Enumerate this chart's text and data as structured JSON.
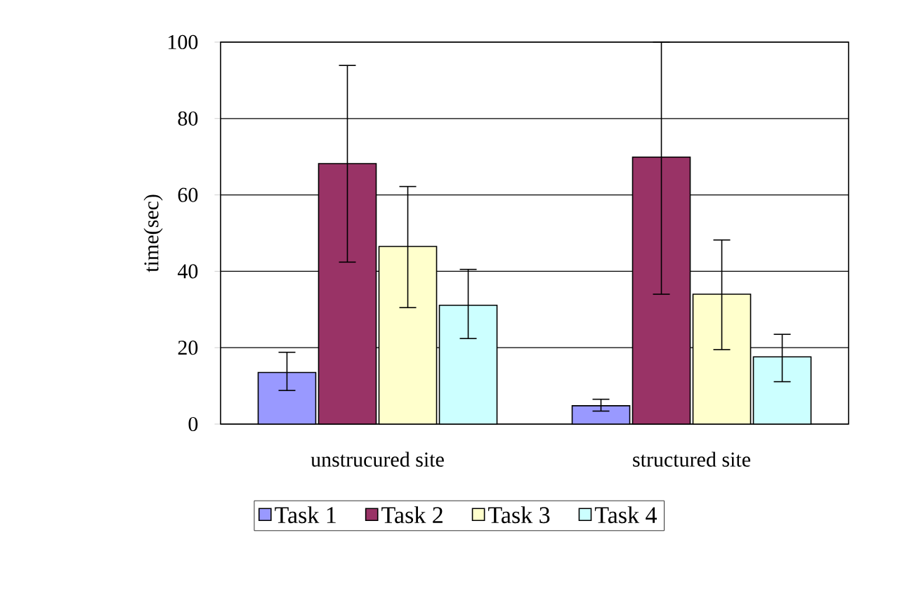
{
  "chart_data": {
    "type": "bar",
    "ylabel": "time(sec)",
    "categories": [
      "unstrucured site",
      "structured site"
    ],
    "series": [
      {
        "name": "Task 1",
        "color": "#9999ff",
        "values": [
          13.5,
          4.8
        ],
        "errors": [
          [
            8.8,
            18.8
          ],
          [
            3.4,
            6.5
          ]
        ]
      },
      {
        "name": "Task 2",
        "color": "#993366",
        "values": [
          68.2,
          69.9
        ],
        "errors": [
          [
            42.4,
            93.9
          ],
          [
            34.0,
            100
          ]
        ]
      },
      {
        "name": "Task 3",
        "color": "#ffffcc",
        "values": [
          46.5,
          34.0
        ],
        "errors": [
          [
            30.5,
            62.2
          ],
          [
            19.5,
            48.2
          ]
        ]
      },
      {
        "name": "Task 4",
        "color": "#ccffff",
        "values": [
          31.1,
          17.6
        ],
        "errors": [
          [
            22.4,
            40.5
          ],
          [
            11.1,
            23.5
          ]
        ]
      }
    ],
    "ylim": [
      0,
      100
    ],
    "yticks": [
      0,
      20,
      40,
      60,
      80,
      100
    ],
    "grid": "y",
    "legend": "bottom"
  }
}
